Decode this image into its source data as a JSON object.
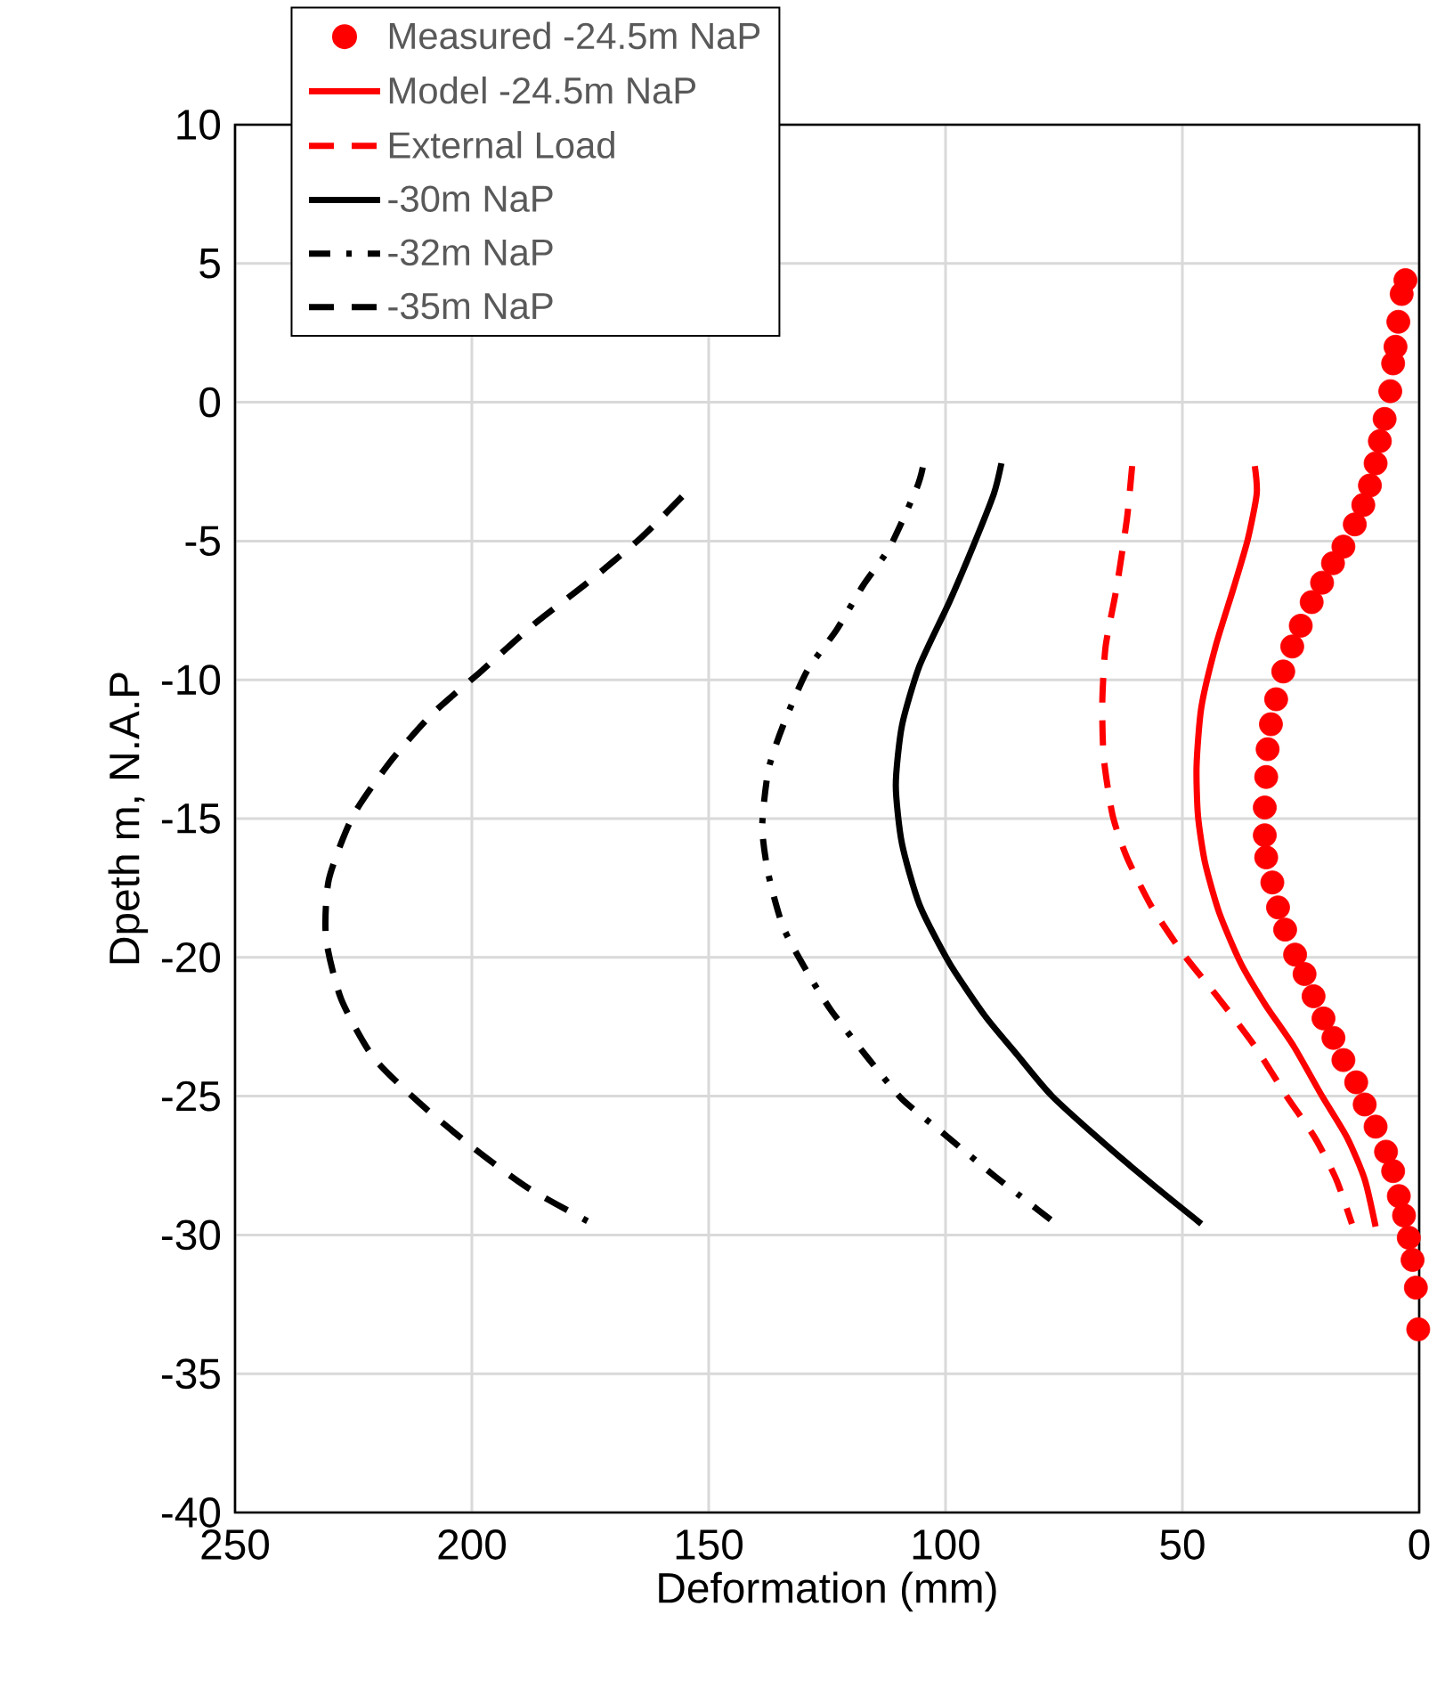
{
  "chart_data": {
    "type": "line",
    "xlabel": "Deformation (mm)",
    "ylabel": "Dpeth m, N.A.P",
    "xlim": [
      250,
      0
    ],
    "xticks": [
      250,
      200,
      150,
      100,
      50,
      0
    ],
    "ylim": [
      -40,
      10
    ],
    "yticks": [
      -40,
      -35,
      -30,
      -25,
      -20,
      -15,
      -10,
      -5,
      0,
      5,
      10
    ],
    "grid": true,
    "legend": "top left",
    "series": [
      {
        "name": "Measured -24.5m NaP",
        "type": "scatter",
        "marker": "circle",
        "color": "#ff0000",
        "x": [
          2.9,
          3.7,
          4.4,
          5.0,
          5.5,
          6.1,
          7.3,
          8.3,
          9.2,
          10.4,
          11.8,
          13.6,
          16.0,
          18.2,
          20.5,
          22.7,
          25.0,
          26.8,
          28.7,
          30.2,
          31.3,
          32.0,
          32.3,
          32.6,
          32.6,
          32.3,
          31.0,
          29.8,
          28.3,
          26.2,
          24.2,
          22.3,
          20.2,
          18.1,
          16.0,
          13.3,
          11.5,
          9.2,
          7.0,
          5.5,
          4.3,
          3.2,
          2.2,
          1.4,
          0.7,
          0.2
        ],
        "values": [
          4.4,
          3.9,
          2.9,
          2.0,
          1.4,
          0.4,
          -0.6,
          -1.4,
          -2.2,
          -3.0,
          -3.7,
          -4.4,
          -5.2,
          -5.8,
          -6.5,
          -7.2,
          -8.05,
          -8.8,
          -9.7,
          -10.7,
          -11.6,
          -12.5,
          -13.5,
          -14.6,
          -15.6,
          -16.4,
          -17.3,
          -18.2,
          -19.0,
          -19.9,
          -20.6,
          -21.4,
          -22.2,
          -22.9,
          -23.7,
          -24.5,
          -25.3,
          -26.1,
          -27.0,
          -27.7,
          -28.6,
          -29.3,
          -30.1,
          -30.9,
          -31.9,
          -33.4
        ]
      },
      {
        "name": "Model -24.5m NaP",
        "line_style": "solid",
        "color": "#ff0000",
        "x": [
          34.7,
          34.3,
          36.2,
          39.2,
          43.0,
          46.0,
          47.0,
          46.7,
          45.2,
          42.2,
          37.7,
          32.5,
          26.5,
          20.5,
          15.2,
          11.5,
          9.2
        ],
        "values": [
          -2.3,
          -3.3,
          -4.95,
          -6.7,
          -8.8,
          -11.0,
          -13.1,
          -14.9,
          -16.6,
          -18.4,
          -20.2,
          -21.7,
          -23.2,
          -25.0,
          -26.5,
          -28.0,
          -29.7
        ]
      },
      {
        "name": "External Load",
        "line_style": "dashed",
        "color": "#ff0000",
        "x": [
          60.6,
          61.7,
          63.9,
          66.2,
          66.9,
          66.6,
          64.7,
          61.7,
          56.4,
          49.7,
          42.2,
          34.7,
          28.0,
          22.0,
          17.5,
          14.2
        ],
        "values": [
          -2.3,
          -4.2,
          -6.7,
          -8.8,
          -10.8,
          -12.8,
          -14.9,
          -16.4,
          -18.2,
          -19.9,
          -21.5,
          -23.2,
          -25.0,
          -26.5,
          -28.0,
          -29.6
        ]
      },
      {
        "name": "-30m NaP",
        "line_style": "solid",
        "color": "#000000",
        "x": [
          88.2,
          89.8,
          94.2,
          99.2,
          105.5,
          109.2,
          110.5,
          109.2,
          105.5,
          99.2,
          91.7,
          85.4,
          77.5,
          64.5,
          54.0,
          46.0
        ],
        "values": [
          -2.2,
          -3.3,
          -5.2,
          -7.2,
          -9.5,
          -11.65,
          -13.8,
          -15.9,
          -18.1,
          -20.2,
          -22.1,
          -23.4,
          -25.0,
          -27.0,
          -28.5,
          -29.6
        ]
      },
      {
        "name": "-32m NaP",
        "line_style": "dashdot",
        "color": "#000000",
        "x": [
          104.8,
          106.1,
          111.7,
          117.4,
          123.0,
          129.3,
          134.3,
          137.4,
          138.7,
          137.4,
          134.3,
          129.3,
          124.2,
          116.5,
          109.2,
          101.1,
          90.2,
          84.2,
          76.7
        ],
        "values": [
          -2.35,
          -3.1,
          -5.2,
          -6.6,
          -8.2,
          -9.7,
          -11.65,
          -13.25,
          -15.3,
          -17.0,
          -18.9,
          -20.5,
          -21.9,
          -23.6,
          -25.1,
          -26.25,
          -27.8,
          -28.6,
          -29.6
        ]
      },
      {
        "name": "-35m NaP",
        "line_style": "dashed",
        "color": "#000000",
        "x": [
          155.6,
          164.4,
          175.6,
          186.9,
          198.1,
          208.2,
          217.0,
          225.1,
          230.2,
          230.8,
          227.6,
          220.8,
          210.7,
          199.4,
          188.2,
          175.6
        ],
        "values": [
          -3.4,
          -4.9,
          -6.5,
          -8.0,
          -9.7,
          -11.2,
          -12.9,
          -14.9,
          -17.2,
          -19.3,
          -21.5,
          -23.6,
          -25.3,
          -26.9,
          -28.3,
          -29.5
        ]
      }
    ]
  }
}
